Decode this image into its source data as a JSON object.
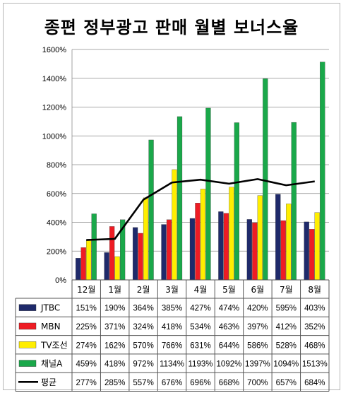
{
  "chart_data": {
    "type": "bar",
    "title": "종편 정부광고 판매 월별 보너스율",
    "categories": [
      "12월",
      "1월",
      "2월",
      "3월",
      "4월",
      "5월",
      "6월",
      "7월",
      "8월"
    ],
    "ylim": [
      0,
      1600
    ],
    "yticks": [
      "0%",
      "200%",
      "400%",
      "600%",
      "800%",
      "1000%",
      "1200%",
      "1400%",
      "1600%"
    ],
    "grid": true,
    "legend_placement": "data-table-left",
    "series": [
      {
        "name": "JTBC",
        "type": "bar",
        "color": "#1f2a6b",
        "values": [
          151,
          190,
          364,
          385,
          427,
          474,
          420,
          595,
          403
        ],
        "labels": [
          "151%",
          "190%",
          "364%",
          "385%",
          "427%",
          "474%",
          "420%",
          "595%",
          "403%"
        ]
      },
      {
        "name": "MBN",
        "type": "bar",
        "color": "#ee1c24",
        "values": [
          225,
          371,
          324,
          418,
          534,
          463,
          397,
          412,
          352
        ],
        "labels": [
          "225%",
          "371%",
          "324%",
          "418%",
          "534%",
          "463%",
          "397%",
          "412%",
          "352%"
        ]
      },
      {
        "name": "TV조선",
        "type": "bar",
        "color": "#ffee00",
        "values": [
          274,
          162,
          570,
          766,
          631,
          644,
          586,
          528,
          468
        ],
        "labels": [
          "274%",
          "162%",
          "570%",
          "766%",
          "631%",
          "644%",
          "586%",
          "528%",
          "468%"
        ]
      },
      {
        "name": "채널A",
        "type": "bar",
        "color": "#1aa84a",
        "values": [
          459,
          418,
          972,
          1134,
          1193,
          1092,
          1397,
          1094,
          1513
        ],
        "labels": [
          "459%",
          "418%",
          "972%",
          "1134%",
          "1193%",
          "1092%",
          "1397%",
          "1094%",
          "1513%"
        ]
      },
      {
        "name": "평균",
        "type": "line",
        "color": "#000000",
        "values": [
          277,
          285,
          557,
          676,
          696,
          668,
          700,
          657,
          684
        ],
        "labels": [
          "277%",
          "285%",
          "557%",
          "676%",
          "696%",
          "668%",
          "700%",
          "657%",
          "684%"
        ]
      }
    ]
  }
}
